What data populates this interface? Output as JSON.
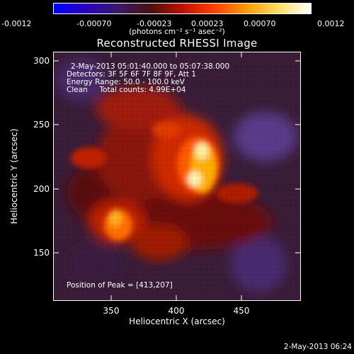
{
  "colorbar": {
    "ticks": [
      "-0.0012",
      "-0.00070",
      "-0.00023",
      "0.00023",
      "0.00070",
      "0.0012"
    ],
    "units": "(photons cm⁻² s⁻¹ asec⁻²)",
    "colors": [
      "#0000ff",
      "#2a00c0",
      "#3a1a6a",
      "#4a1010",
      "#c01000",
      "#ff4000",
      "#ff9a00",
      "#ffe060",
      "#ffffff"
    ]
  },
  "title": "Reconstructed RHESSI Image",
  "info": {
    "time_range": "2-May-2013 05:01:40.000 to 05:07:38.000",
    "detectors": "Detectors: 3F 5F 6F 7F 8F 9F, Att 1",
    "energy": "Energy Range: 50.0 - 100.0 keV",
    "clean": "Clean     Total counts: 4.99E+04",
    "peak": "Position of Peak = [413,207]"
  },
  "axes": {
    "xlabel": "Heliocentric X (arcsec)",
    "ylabel": "Heliocentric Y (arcsec)",
    "xticks": [
      "350",
      "400",
      "450"
    ],
    "yticks": [
      "300",
      "250",
      "200",
      "150"
    ],
    "xrange": [
      302,
      492
    ],
    "yrange": [
      110,
      303
    ]
  },
  "timestamp": "2-May-2013 06:24"
}
